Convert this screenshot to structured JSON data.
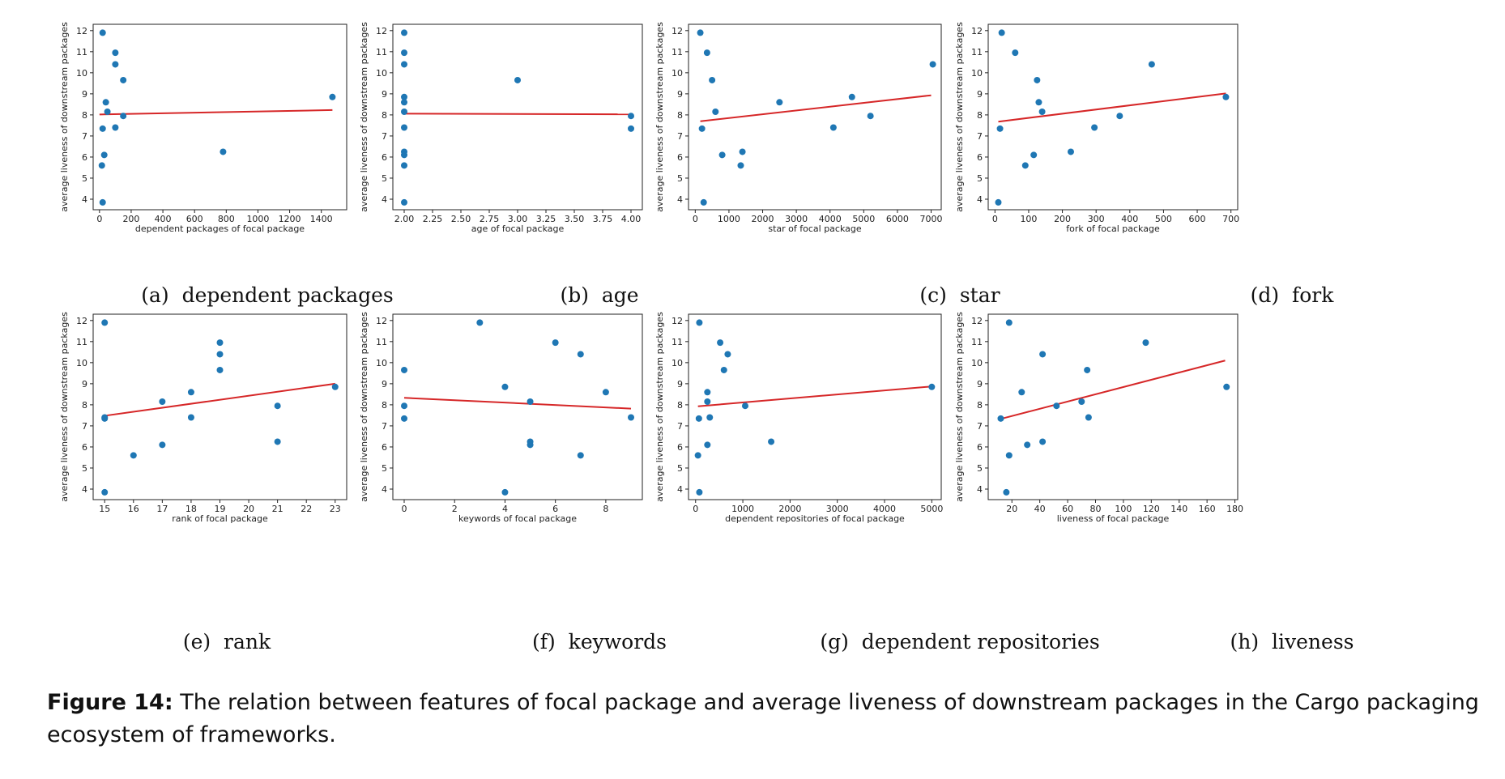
{
  "chart_data": [
    {
      "type": "scatter",
      "panel_label": "(a)",
      "subcaption": "dependent packages",
      "xlabel": "dependent packages of focal package",
      "ylabel": "average liveness of downstream packages",
      "xlim": [
        -40,
        1560
      ],
      "ylim": [
        3.5,
        12.3
      ],
      "xticks": [
        0,
        200,
        400,
        600,
        800,
        1000,
        1200,
        1400
      ],
      "yticks": [
        4,
        5,
        6,
        7,
        8,
        9,
        10,
        11,
        12
      ],
      "points": [
        [
          20,
          11.9
        ],
        [
          100,
          10.95
        ],
        [
          100,
          10.4
        ],
        [
          150,
          9.65
        ],
        [
          40,
          8.6
        ],
        [
          1470,
          8.85
        ],
        [
          50,
          8.15
        ],
        [
          150,
          7.95
        ],
        [
          20,
          7.35
        ],
        [
          100,
          7.4
        ],
        [
          780,
          6.25
        ],
        [
          30,
          6.1
        ],
        [
          15,
          5.6
        ],
        [
          20,
          3.85
        ]
      ],
      "trend": [
        [
          0,
          8.02
        ],
        [
          1470,
          8.23
        ]
      ],
      "marker_color": "#1f77b4",
      "trend_color": "#d62728"
    },
    {
      "type": "scatter",
      "panel_label": "(b)",
      "subcaption": "age",
      "xlabel": "age of focal package",
      "ylabel": "average liveness of downstream packages",
      "xlim": [
        1.9,
        4.1
      ],
      "ylim": [
        3.5,
        12.3
      ],
      "xticks": [
        2.0,
        2.25,
        2.5,
        2.75,
        3.0,
        3.25,
        3.5,
        3.75,
        4.0
      ],
      "xtick_labels": [
        "2.00",
        "2.25",
        "2.50",
        "2.75",
        "3.00",
        "3.25",
        "3.50",
        "3.75",
        "4.00"
      ],
      "yticks": [
        4,
        5,
        6,
        7,
        8,
        9,
        10,
        11,
        12
      ],
      "points": [
        [
          2,
          11.9
        ],
        [
          2,
          10.95
        ],
        [
          2,
          10.4
        ],
        [
          2,
          8.85
        ],
        [
          2,
          8.6
        ],
        [
          2,
          8.15
        ],
        [
          2,
          7.4
        ],
        [
          2,
          6.25
        ],
        [
          2,
          6.1
        ],
        [
          2,
          5.6
        ],
        [
          2,
          3.85
        ],
        [
          3,
          9.65
        ],
        [
          4,
          7.95
        ],
        [
          4,
          7.35
        ]
      ],
      "trend": [
        [
          2,
          8.06
        ],
        [
          4,
          8.03
        ]
      ],
      "marker_color": "#1f77b4",
      "trend_color": "#d62728"
    },
    {
      "type": "scatter",
      "panel_label": "(c)",
      "subcaption": "star",
      "xlabel": "star of focal package",
      "ylabel": "average liveness of downstream packages",
      "xlim": [
        -200,
        7300
      ],
      "ylim": [
        3.5,
        12.3
      ],
      "xticks": [
        0,
        1000,
        2000,
        3000,
        4000,
        5000,
        6000,
        7000
      ],
      "yticks": [
        4,
        5,
        6,
        7,
        8,
        9,
        10,
        11,
        12
      ],
      "points": [
        [
          150,
          11.9
        ],
        [
          350,
          10.95
        ],
        [
          500,
          9.65
        ],
        [
          600,
          8.15
        ],
        [
          200,
          7.35
        ],
        [
          800,
          6.1
        ],
        [
          1400,
          6.25
        ],
        [
          1350,
          5.6
        ],
        [
          250,
          3.85
        ],
        [
          2500,
          8.6
        ],
        [
          4100,
          7.4
        ],
        [
          4650,
          8.85
        ],
        [
          5200,
          7.95
        ],
        [
          7050,
          10.4
        ]
      ],
      "trend": [
        [
          150,
          7.7
        ],
        [
          7000,
          8.93
        ]
      ],
      "marker_color": "#1f77b4",
      "trend_color": "#d62728"
    },
    {
      "type": "scatter",
      "panel_label": "(d)",
      "subcaption": "fork",
      "xlabel": "fork of focal package",
      "ylabel": "average liveness of downstream packages",
      "xlim": [
        -20,
        720
      ],
      "ylim": [
        3.5,
        12.3
      ],
      "xticks": [
        0,
        100,
        200,
        300,
        400,
        500,
        600,
        700
      ],
      "yticks": [
        4,
        5,
        6,
        7,
        8,
        9,
        10,
        11,
        12
      ],
      "points": [
        [
          20,
          11.9
        ],
        [
          60,
          10.95
        ],
        [
          125,
          9.65
        ],
        [
          130,
          8.6
        ],
        [
          140,
          8.15
        ],
        [
          15,
          7.35
        ],
        [
          115,
          6.1
        ],
        [
          90,
          5.6
        ],
        [
          10,
          3.85
        ],
        [
          225,
          6.25
        ],
        [
          295,
          7.4
        ],
        [
          370,
          7.95
        ],
        [
          465,
          10.4
        ],
        [
          685,
          8.85
        ]
      ],
      "trend": [
        [
          10,
          7.68
        ],
        [
          685,
          9.02
        ]
      ],
      "marker_color": "#1f77b4",
      "trend_color": "#d62728"
    },
    {
      "type": "scatter",
      "panel_label": "(e)",
      "subcaption": "rank",
      "xlabel": "rank of focal package",
      "ylabel": "average liveness of downstream packages",
      "xlim": [
        14.6,
        23.4
      ],
      "ylim": [
        3.5,
        12.3
      ],
      "xticks": [
        15,
        16,
        17,
        18,
        19,
        20,
        21,
        22,
        23
      ],
      "yticks": [
        4,
        5,
        6,
        7,
        8,
        9,
        10,
        11,
        12
      ],
      "points": [
        [
          15,
          11.9
        ],
        [
          15,
          7.4
        ],
        [
          15,
          7.35
        ],
        [
          15,
          3.85
        ],
        [
          16,
          5.6
        ],
        [
          17,
          8.15
        ],
        [
          17,
          6.1
        ],
        [
          18,
          8.6
        ],
        [
          18,
          7.4
        ],
        [
          19,
          10.95
        ],
        [
          19,
          10.4
        ],
        [
          19,
          9.65
        ],
        [
          21,
          7.95
        ],
        [
          21,
          6.25
        ],
        [
          23,
          8.85
        ]
      ],
      "trend": [
        [
          15,
          7.48
        ],
        [
          23,
          9.0
        ]
      ],
      "marker_color": "#1f77b4",
      "trend_color": "#d62728"
    },
    {
      "type": "scatter",
      "panel_label": "(f)",
      "subcaption": "keywords",
      "xlabel": "keywords of focal package",
      "ylabel": "average liveness of downstream packages",
      "xlim": [
        -0.45,
        9.45
      ],
      "ylim": [
        3.5,
        12.3
      ],
      "xticks": [
        0,
        2,
        4,
        6,
        8
      ],
      "yticks": [
        4,
        5,
        6,
        7,
        8,
        9,
        10,
        11,
        12
      ],
      "points": [
        [
          0,
          9.65
        ],
        [
          0,
          7.95
        ],
        [
          0,
          7.35
        ],
        [
          3,
          11.9
        ],
        [
          4,
          8.85
        ],
        [
          4,
          3.85
        ],
        [
          5,
          8.15
        ],
        [
          5,
          6.25
        ],
        [
          5,
          6.1
        ],
        [
          6,
          10.95
        ],
        [
          7,
          10.4
        ],
        [
          7,
          5.6
        ],
        [
          8,
          8.6
        ],
        [
          9,
          7.4
        ]
      ],
      "trend": [
        [
          0,
          8.33
        ],
        [
          9,
          7.82
        ]
      ],
      "marker_color": "#1f77b4",
      "trend_color": "#d62728"
    },
    {
      "type": "scatter",
      "panel_label": "(g)",
      "subcaption": "dependent repositories",
      "xlabel": "dependent repositories of focal package",
      "ylabel": "average liveness of downstream packages",
      "xlim": [
        -150,
        5200
      ],
      "ylim": [
        3.5,
        12.3
      ],
      "xticks": [
        0,
        1000,
        2000,
        3000,
        4000,
        5000
      ],
      "yticks": [
        4,
        5,
        6,
        7,
        8,
        9,
        10,
        11,
        12
      ],
      "points": [
        [
          80,
          11.9
        ],
        [
          520,
          10.95
        ],
        [
          680,
          10.4
        ],
        [
          600,
          9.65
        ],
        [
          250,
          8.6
        ],
        [
          250,
          8.15
        ],
        [
          1050,
          7.95
        ],
        [
          70,
          7.35
        ],
        [
          300,
          7.4
        ],
        [
          250,
          6.1
        ],
        [
          1600,
          6.25
        ],
        [
          50,
          5.6
        ],
        [
          80,
          3.85
        ],
        [
          5000,
          8.85
        ]
      ],
      "trend": [
        [
          50,
          7.93
        ],
        [
          5000,
          8.87
        ]
      ],
      "marker_color": "#1f77b4",
      "trend_color": "#d62728"
    },
    {
      "type": "scatter",
      "panel_label": "(h)",
      "subcaption": "liveness",
      "xlabel": "liveness of focal package",
      "ylabel": "average liveness of downstream packages",
      "xlim": [
        3,
        182
      ],
      "ylim": [
        3.5,
        12.3
      ],
      "xticks": [
        20,
        40,
        60,
        80,
        100,
        120,
        140,
        160,
        180
      ],
      "yticks": [
        4,
        5,
        6,
        7,
        8,
        9,
        10,
        11,
        12
      ],
      "points": [
        [
          18,
          11.9
        ],
        [
          116,
          10.95
        ],
        [
          42,
          10.4
        ],
        [
          74,
          9.65
        ],
        [
          27,
          8.6
        ],
        [
          70,
          8.15
        ],
        [
          52,
          7.95
        ],
        [
          12,
          7.35
        ],
        [
          75,
          7.4
        ],
        [
          31,
          6.1
        ],
        [
          42,
          6.25
        ],
        [
          18,
          5.6
        ],
        [
          16,
          3.85
        ],
        [
          174,
          8.85
        ]
      ],
      "trend": [
        [
          12,
          7.33
        ],
        [
          173,
          10.1
        ]
      ],
      "marker_color": "#1f77b4",
      "trend_color": "#d62728"
    }
  ],
  "caption": {
    "label": "Figure 14:",
    "text": " The relation between features of focal package and average liveness of downstream packages in the Cargo packaging ecosystem of frameworks."
  }
}
